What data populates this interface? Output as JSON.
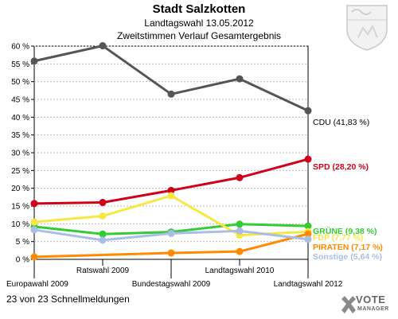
{
  "header": {
    "title": "Stadt Salzkotten",
    "subtitle1": "Landtagswahl 13.05.2012",
    "subtitle2": "Zweitstimmen Verlauf Gesamtergebnis"
  },
  "footer": {
    "status": "23 von 23 Schnellmeldungen"
  },
  "logo": {
    "text": "VOTE",
    "subtext": "MANAGER"
  },
  "chart_data": {
    "type": "line",
    "categories": [
      "Europawahl 2009",
      "Ratswahl 2009",
      "Bundestagswahl 2009",
      "Landtagswahl 2010",
      "Landtagswahl 2012"
    ],
    "ylim": [
      0,
      60
    ],
    "yticks": [
      0,
      5,
      10,
      15,
      20,
      25,
      30,
      35,
      40,
      45,
      50,
      55,
      60
    ],
    "ytick_suffix": " %",
    "series": [
      {
        "name": "CDU",
        "label": "CDU (41,83 %)",
        "color": "#555555",
        "values": [
          55.8,
          60.1,
          46.5,
          50.8,
          41.83
        ]
      },
      {
        "name": "SPD",
        "label": "SPD (28,20 %)",
        "color": "#d0021b",
        "values": [
          15.7,
          16.0,
          19.4,
          23.0,
          28.2
        ]
      },
      {
        "name": "GRÜNE",
        "label": "GRÜNE (9,38 %)",
        "color": "#33cc33",
        "values": [
          9.2,
          7.1,
          7.7,
          9.9,
          9.38
        ]
      },
      {
        "name": "FDP",
        "label": "FDP (7,77 %)",
        "color": "#f5e843",
        "values": [
          10.5,
          12.2,
          17.9,
          6.8,
          7.77
        ]
      },
      {
        "name": "PIRATEN",
        "label": "PIRATEN (7,17 %)",
        "color": "#ff8a00",
        "values": [
          0.7,
          null,
          1.8,
          2.2,
          7.17
        ]
      },
      {
        "name": "Sonstige",
        "label": "Sonstige (5,64 %)",
        "color": "#a9bde6",
        "values": [
          8.3,
          5.4,
          7.3,
          8.0,
          5.64
        ]
      }
    ]
  }
}
